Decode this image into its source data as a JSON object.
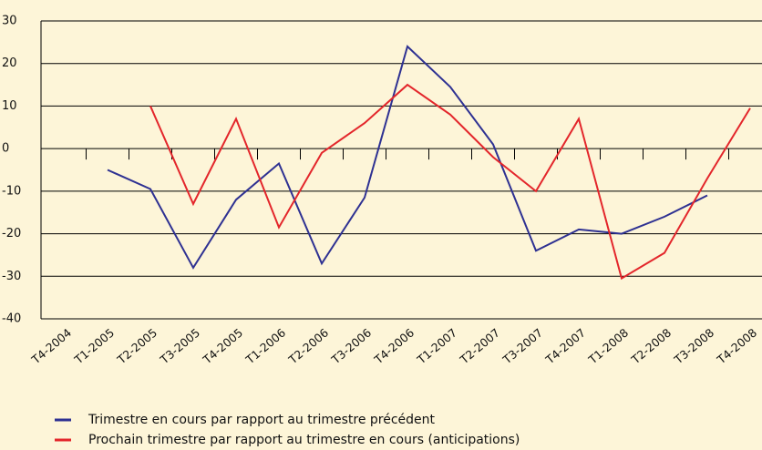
{
  "chart_data": {
    "type": "line",
    "categories": [
      "T4-2004",
      "T1-2005",
      "T2-2005",
      "T3-2005",
      "T4-2005",
      "T1-2006",
      "T2-2006",
      "T3-2006",
      "T4-2006",
      "T1-2007",
      "T2-2007",
      "T3-2007",
      "T4-2007",
      "T1-2008",
      "T2-2008",
      "T3-2008",
      "T4-2008"
    ],
    "series": [
      {
        "name": "Trimestre en cours par rapport au trimestre précédent",
        "color": "#2e3192",
        "values": [
          null,
          -5,
          -9.5,
          -28,
          -12,
          -3.5,
          -27,
          -11.5,
          24,
          14.5,
          1,
          -24,
          -19,
          -20,
          -16,
          -11,
          null
        ]
      },
      {
        "name": "Prochain trimestre par rapport au trimestre en cours (anticipations)",
        "color": "#e3262b",
        "values": [
          null,
          null,
          10,
          -13,
          7,
          -18.5,
          -1,
          6,
          15,
          8,
          -2,
          -10,
          7,
          -30.5,
          -24.5,
          -7,
          9.5
        ]
      }
    ],
    "ylim": [
      -40,
      30
    ],
    "yticks": [
      -40,
      -30,
      -20,
      -10,
      0,
      10,
      20,
      30
    ],
    "grid": true
  }
}
